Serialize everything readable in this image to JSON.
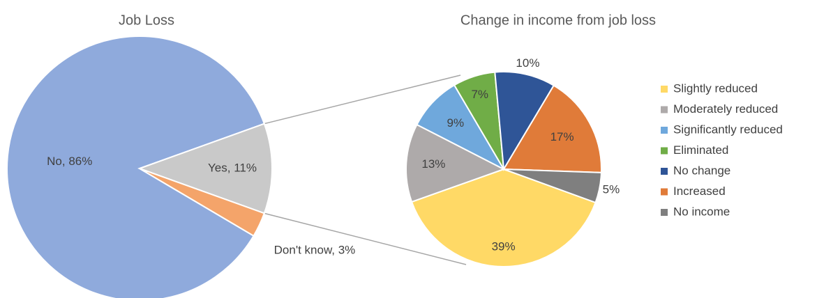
{
  "chart_data": [
    {
      "type": "pie",
      "title": "Job Loss",
      "categories": [
        "No",
        "Yes",
        "Don't know"
      ],
      "values": [
        86,
        11,
        3
      ],
      "value_labels": [
        "No, 86%",
        "Yes, 11%",
        "Don't know, 3%"
      ],
      "colors": [
        "#8faadc",
        "#c9c9c9",
        "#f4a46a"
      ]
    },
    {
      "type": "pie",
      "title": "Change in income from job loss",
      "categories": [
        "Slightly reduced",
        "Moderately reduced",
        "Significantly reduced",
        "Eliminated",
        "No change",
        "Increased",
        "No income"
      ],
      "values": [
        39,
        13,
        9,
        7,
        10,
        17,
        5
      ],
      "value_labels": [
        "39%",
        "13%",
        "9%",
        "7%",
        "10%",
        "17%",
        "5%"
      ],
      "colors": [
        "#ffd966",
        "#aeaaaa",
        "#6fa8dc",
        "#70ad47",
        "#2f5597",
        "#e07b39",
        "#7f7f7f"
      ],
      "legend": "right"
    }
  ]
}
